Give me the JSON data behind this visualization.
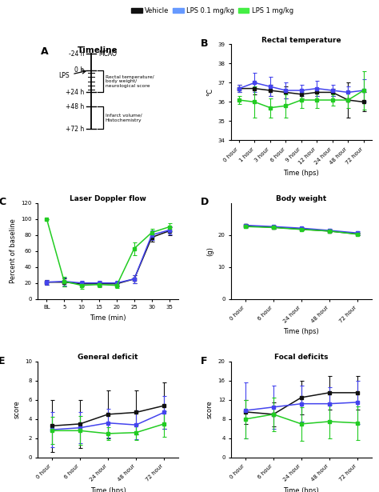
{
  "panel_B": {
    "title": "Rectal temperature",
    "xlabel": "Time (hps)",
    "ylabel": "°C",
    "xticks": [
      "0 hour",
      "1 hour",
      "3 hour",
      "6 hour",
      "9 hour",
      "12 hour",
      "24 hour",
      "48 hour",
      "72 hour"
    ],
    "ylim": [
      34,
      39
    ],
    "yticks": [
      34,
      35,
      36,
      37,
      38,
      39
    ],
    "black_y": [
      36.7,
      36.7,
      36.6,
      36.5,
      36.4,
      36.5,
      36.5,
      36.1,
      36.0
    ],
    "black_err": [
      0.2,
      0.3,
      0.3,
      0.3,
      0.2,
      0.2,
      0.2,
      0.9,
      0.5
    ],
    "blue_y": [
      36.7,
      37.0,
      36.8,
      36.6,
      36.6,
      36.7,
      36.6,
      36.5,
      36.6
    ],
    "blue_err": [
      0.2,
      0.5,
      0.5,
      0.4,
      0.3,
      0.4,
      0.3,
      0.3,
      0.6
    ],
    "green_y": [
      36.1,
      36.0,
      35.7,
      35.8,
      36.1,
      36.1,
      36.1,
      36.1,
      36.6
    ],
    "green_err": [
      0.2,
      0.8,
      0.5,
      0.6,
      0.4,
      0.4,
      0.3,
      0.4,
      1.0
    ]
  },
  "panel_C": {
    "title": "Laser Doppler flow",
    "xlabel": "Time (min)",
    "ylabel": "Percent of baseline",
    "xticks": [
      "BL",
      "5",
      "10",
      "15",
      "20",
      "25",
      "30",
      "35"
    ],
    "ylim": [
      0,
      120
    ],
    "yticks": [
      0,
      20,
      40,
      60,
      80,
      100,
      120
    ],
    "black_y": [
      21,
      21,
      19,
      19,
      19,
      25,
      77,
      85
    ],
    "black_err": [
      3,
      5,
      3,
      3,
      3,
      5,
      5,
      5
    ],
    "blue_y": [
      21,
      22,
      20,
      20,
      20,
      25,
      80,
      86
    ],
    "blue_err": [
      3,
      5,
      3,
      3,
      3,
      5,
      6,
      5
    ],
    "green_y": [
      100,
      22,
      17,
      18,
      17,
      63,
      83,
      90
    ],
    "green_err": [
      0,
      6,
      4,
      3,
      3,
      8,
      5,
      5
    ]
  },
  "panel_D": {
    "title": "Body weight",
    "xlabel": "Time (hps)",
    "ylabel": "(g)",
    "xticks": [
      "0 hour",
      "6 hour",
      "24 hour",
      "48 hour",
      "72 hour"
    ],
    "ylim": [
      0,
      30
    ],
    "yticks": [
      0,
      10,
      20
    ],
    "black_y": [
      22.8,
      22.4,
      21.8,
      21.2,
      20.3
    ],
    "black_err": [
      0.5,
      0.5,
      0.4,
      0.4,
      0.4
    ],
    "blue_y": [
      23.0,
      22.6,
      22.1,
      21.4,
      20.6
    ],
    "blue_err": [
      0.5,
      0.4,
      0.4,
      0.4,
      0.5
    ],
    "green_y": [
      22.6,
      22.3,
      21.7,
      21.2,
      20.2
    ],
    "green_err": [
      0.5,
      0.4,
      0.4,
      0.3,
      0.4
    ]
  },
  "panel_E": {
    "title": "General deficit",
    "xlabel": "Time (hps)",
    "ylabel": "score",
    "xticks": [
      "0 hour",
      "6 hour",
      "24 hour",
      "48 hour",
      "72 hour"
    ],
    "ylim": [
      0,
      10
    ],
    "yticks": [
      0,
      2,
      4,
      6,
      8,
      10
    ],
    "black_y": [
      3.3,
      3.5,
      4.5,
      4.7,
      5.4
    ],
    "black_err": [
      2.7,
      2.5,
      2.5,
      2.3,
      2.4
    ],
    "blue_y": [
      2.9,
      3.1,
      3.6,
      3.4,
      4.7
    ],
    "blue_err": [
      1.8,
      1.6,
      1.5,
      1.5,
      1.7
    ],
    "green_y": [
      2.8,
      2.8,
      2.5,
      2.6,
      3.5
    ],
    "green_err": [
      1.4,
      1.5,
      0.7,
      0.8,
      1.3
    ]
  },
  "panel_F": {
    "title": "Focal deficits",
    "xlabel": "Time (hps)",
    "ylabel": "score",
    "xticks": [
      "0 hour",
      "6 hour",
      "24 hour",
      "48 hour",
      "72 hour"
    ],
    "ylim": [
      0,
      20
    ],
    "yticks": [
      0,
      4,
      8,
      12,
      16,
      20
    ],
    "black_y": [
      9.5,
      9.0,
      12.5,
      13.5,
      13.5
    ],
    "black_err": [
      2.5,
      2.5,
      3.5,
      3.5,
      3.5
    ],
    "blue_y": [
      9.8,
      10.5,
      11.2,
      11.2,
      11.5
    ],
    "blue_err": [
      5.8,
      4.5,
      3.8,
      3.5,
      4.5
    ],
    "green_y": [
      8.0,
      9.0,
      7.0,
      7.5,
      7.2
    ],
    "green_err": [
      4.0,
      3.5,
      3.5,
      3.5,
      3.5
    ]
  },
  "colors": {
    "black": "#111111",
    "blue": "#4444ee",
    "green": "#22cc22"
  }
}
